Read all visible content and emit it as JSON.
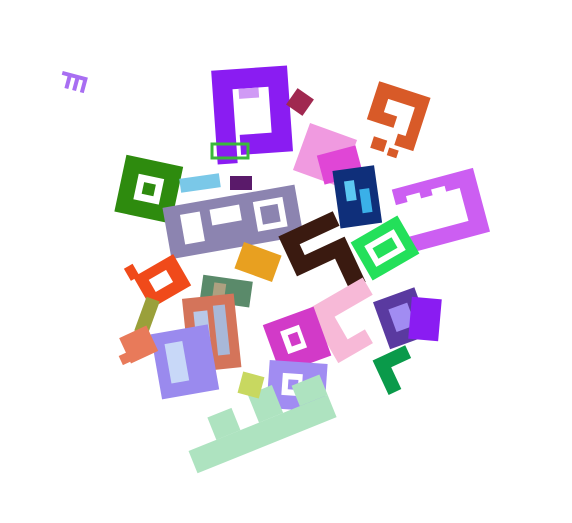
{
  "scene": {
    "background": "#ffffff",
    "description_kind": "abstract collage of overlapping colored kufic-style glyph shapes",
    "palette": [
      "#8a1cf2",
      "#d85a28",
      "#2e8b0e",
      "#8c84b0",
      "#cc5ef2",
      "#23e05a",
      "#0f2f7a",
      "#3a1a10",
      "#d23ac8",
      "#f04a1a",
      "#aee3c0",
      "#a18cf2",
      "#c24f5a",
      "#f7b9d7",
      "#6a3fc0",
      "#7ac8e8"
    ]
  }
}
